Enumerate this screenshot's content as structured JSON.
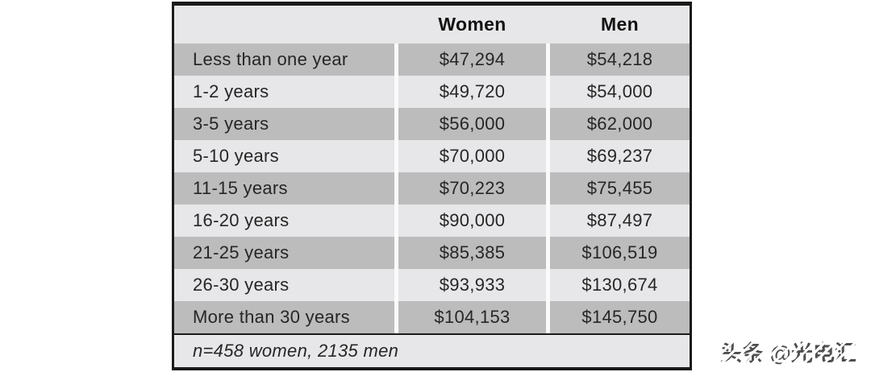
{
  "table": {
    "columns": [
      "",
      "Women",
      "Men"
    ],
    "rows": [
      {
        "label": "Less than one year",
        "women": "$47,294",
        "men": "$54,218"
      },
      {
        "label": "1-2 years",
        "women": "$49,720",
        "men": "$54,000"
      },
      {
        "label": "3-5 years",
        "women": "$56,000",
        "men": "$62,000"
      },
      {
        "label": "5-10 years",
        "women": "$70,000",
        "men": "$69,237"
      },
      {
        "label": "11-15 years",
        "women": "$70,223",
        "men": "$75,455"
      },
      {
        "label": "16-20 years",
        "women": "$90,000",
        "men": "$87,497"
      },
      {
        "label": "21-25 years",
        "women": "$85,385",
        "men": "$106,519"
      },
      {
        "label": "26-30 years",
        "women": "$93,933",
        "men": "$130,674"
      },
      {
        "label": "More than 30 years",
        "women": "$104,153",
        "men": "$145,750"
      }
    ],
    "footnote": "n=458 women, 2135 men"
  },
  "watermark": {
    "text": "头条 @光电汇"
  },
  "colors": {
    "border": "#1b1b1b",
    "row_dark": "#bcbcbd",
    "row_light": "#e7e7e9",
    "separator": "#fafafa",
    "text": "#262626",
    "watermark_gray": "#4e4e4e"
  },
  "chart_data": {
    "type": "table",
    "title": "Salary by years of experience, Women vs Men",
    "categories": [
      "Less than one year",
      "1-2 years",
      "3-5 years",
      "5-10 years",
      "11-15 years",
      "16-20 years",
      "21-25 years",
      "26-30 years",
      "More than 30 years"
    ],
    "series": [
      {
        "name": "Women",
        "values": [
          47294,
          49720,
          56000,
          70000,
          70223,
          90000,
          85385,
          93933,
          104153
        ]
      },
      {
        "name": "Men",
        "values": [
          54218,
          54000,
          62000,
          69237,
          75455,
          87497,
          106519,
          130674,
          145750
        ]
      }
    ],
    "note": "n=458 women, 2135 men",
    "layout": {
      "grid": false,
      "legend_position": "column-headers",
      "units": "USD"
    }
  }
}
